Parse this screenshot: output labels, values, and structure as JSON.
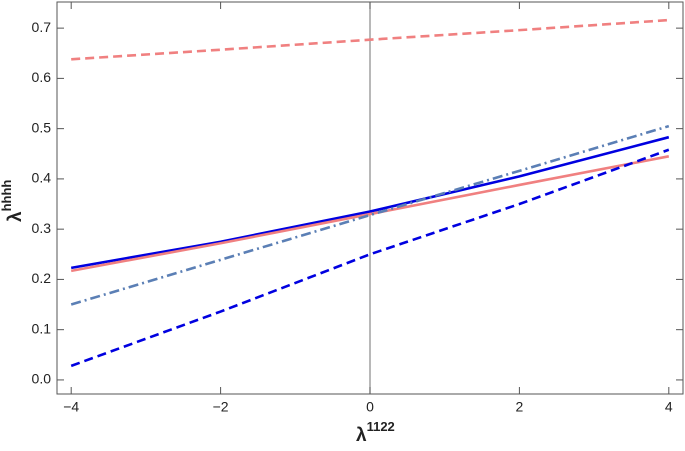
{
  "chart_data": {
    "type": "line",
    "xlabel": "λ",
    "xlabel_sup": "1122",
    "ylabel": "λ",
    "ylabel_sup": "hhhh",
    "x": [
      -4,
      -2,
      0,
      2,
      4
    ],
    "series": [
      {
        "color": "#f08080",
        "dash": "dashed",
        "values": [
          0.638,
          0.657,
          0.677,
          0.696,
          0.716
        ]
      },
      {
        "color": "#0000e0",
        "dash": "solid",
        "values": [
          0.223,
          0.275,
          0.335,
          0.405,
          0.483
        ]
      },
      {
        "color": "#f08080",
        "dash": "solid",
        "values": [
          0.217,
          0.272,
          0.33,
          0.388,
          0.445
        ]
      },
      {
        "color": "#5b7fb5",
        "dash": "dashdot",
        "values": [
          0.15,
          0.239,
          0.328,
          0.416,
          0.505
        ]
      },
      {
        "color": "#0000e0",
        "dash": "dashed",
        "values": [
          0.028,
          0.136,
          0.25,
          0.35,
          0.458
        ]
      }
    ],
    "xlim": [
      -4.19,
      4.19
    ],
    "ylim": [
      -0.028,
      0.752
    ],
    "xticks": [
      {
        "value": -4,
        "label": "−4"
      },
      {
        "value": -2,
        "label": "−2"
      },
      0,
      2,
      4
    ],
    "yticks": [
      {
        "value": 0,
        "label": "0.0"
      },
      0.1,
      0.2,
      0.3,
      0.4,
      0.5,
      0.6,
      0.7
    ]
  }
}
